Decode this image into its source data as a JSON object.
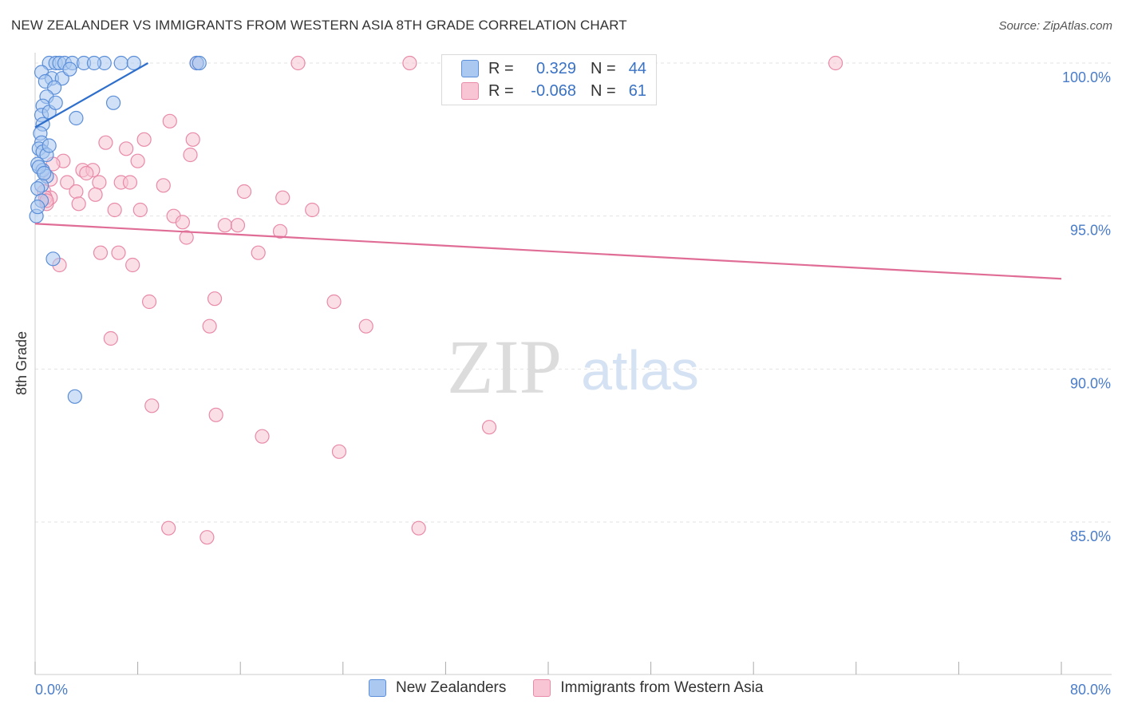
{
  "title": "NEW ZEALANDER VS IMMIGRANTS FROM WESTERN ASIA 8TH GRADE CORRELATION CHART",
  "source": "Source: ZipAtlas.com",
  "watermark": {
    "zip": "ZIP",
    "atlas": "atlas"
  },
  "legend": {
    "rows": [
      {
        "r_label": "R =",
        "r_value": "0.329",
        "n_label": "N =",
        "n_value": "44"
      },
      {
        "r_label": "R =",
        "r_value": "-0.068",
        "n_label": "N =",
        "n_value": "61"
      }
    ]
  },
  "bottom_legend": [
    "New Zealanders",
    "Immigrants from Western Asia"
  ],
  "colors": {
    "blue_fill": "#aac8f0",
    "blue_stroke": "#5b8ed8",
    "blue_line": "#2f6fcc",
    "pink_fill": "#f7c5d3",
    "pink_stroke": "#e88aa8",
    "pink_line": "#e06d96",
    "axis_text": "#4a7cc7",
    "grid": "#e3e3e3"
  },
  "chart_data": {
    "type": "scatter",
    "title": "NEW ZEALANDER VS IMMIGRANTS FROM WESTERN ASIA 8TH GRADE CORRELATION CHART",
    "xlabel": "",
    "ylabel": "8th Grade",
    "xlim": [
      0,
      80
    ],
    "ylim": [
      80.5,
      100.5
    ],
    "x_tick_labels": [
      "0.0%",
      "80.0%"
    ],
    "y_ticks": [
      85,
      90,
      95,
      100
    ],
    "y_tick_labels": [
      "85.0%",
      "90.0%",
      "95.0%",
      "100.0%"
    ],
    "series": [
      {
        "name": "New Zealanders",
        "R": 0.329,
        "N": 44,
        "trend": {
          "x": [
            0.0,
            8.8
          ],
          "y": [
            97.9,
            100.0
          ]
        },
        "points": [
          [
            1.1,
            100.0
          ],
          [
            1.6,
            100.0
          ],
          [
            1.9,
            100.0
          ],
          [
            2.3,
            100.0
          ],
          [
            2.9,
            100.0
          ],
          [
            3.8,
            100.0
          ],
          [
            5.4,
            100.0
          ],
          [
            6.7,
            100.0
          ],
          [
            7.7,
            100.0
          ],
          [
            12.6,
            100.0
          ],
          [
            0.5,
            99.7
          ],
          [
            1.3,
            99.5
          ],
          [
            2.1,
            99.5
          ],
          [
            0.8,
            99.4
          ],
          [
            1.5,
            99.2
          ],
          [
            0.9,
            98.9
          ],
          [
            6.1,
            98.7
          ],
          [
            0.6,
            98.6
          ],
          [
            0.5,
            98.3
          ],
          [
            1.1,
            98.4
          ],
          [
            3.2,
            98.2
          ],
          [
            0.6,
            98.0
          ],
          [
            0.4,
            97.7
          ],
          [
            0.5,
            97.4
          ],
          [
            0.3,
            97.2
          ],
          [
            0.6,
            97.1
          ],
          [
            0.9,
            97.0
          ],
          [
            0.2,
            96.7
          ],
          [
            0.6,
            96.5
          ],
          [
            0.9,
            96.3
          ],
          [
            0.5,
            96.0
          ],
          [
            0.2,
            95.9
          ],
          [
            0.5,
            95.5
          ],
          [
            0.1,
            95.0
          ],
          [
            1.4,
            93.6
          ],
          [
            3.1,
            89.1
          ],
          [
            1.6,
            98.7
          ],
          [
            2.7,
            99.8
          ],
          [
            1.1,
            97.3
          ],
          [
            0.3,
            96.6
          ],
          [
            0.7,
            96.4
          ],
          [
            0.2,
            95.3
          ],
          [
            4.6,
            100.0
          ],
          [
            12.8,
            100.0
          ]
        ]
      },
      {
        "name": "Immigrants from Western Asia",
        "R": -0.068,
        "N": 61,
        "trend": {
          "x": [
            0.0,
            80.0
          ],
          "y": [
            94.75,
            92.95
          ]
        },
        "points": [
          [
            12.6,
            100.0
          ],
          [
            20.5,
            100.0
          ],
          [
            29.2,
            100.0
          ],
          [
            43.4,
            100.0
          ],
          [
            62.4,
            100.0
          ],
          [
            10.5,
            98.1
          ],
          [
            12.3,
            97.5
          ],
          [
            5.5,
            97.4
          ],
          [
            8.5,
            97.5
          ],
          [
            7.1,
            97.2
          ],
          [
            12.1,
            97.0
          ],
          [
            2.2,
            96.8
          ],
          [
            8.0,
            96.8
          ],
          [
            3.7,
            96.5
          ],
          [
            4.5,
            96.5
          ],
          [
            1.4,
            96.7
          ],
          [
            4.0,
            96.4
          ],
          [
            1.2,
            96.2
          ],
          [
            2.5,
            96.1
          ],
          [
            5.0,
            96.1
          ],
          [
            6.7,
            96.1
          ],
          [
            7.4,
            96.1
          ],
          [
            10.0,
            96.0
          ],
          [
            3.2,
            95.8
          ],
          [
            4.7,
            95.7
          ],
          [
            16.3,
            95.8
          ],
          [
            19.3,
            95.6
          ],
          [
            0.7,
            95.8
          ],
          [
            1.2,
            95.6
          ],
          [
            0.9,
            95.4
          ],
          [
            3.4,
            95.4
          ],
          [
            6.2,
            95.2
          ],
          [
            8.2,
            95.2
          ],
          [
            21.6,
            95.2
          ],
          [
            10.8,
            95.0
          ],
          [
            11.5,
            94.8
          ],
          [
            14.8,
            94.7
          ],
          [
            15.8,
            94.7
          ],
          [
            11.8,
            94.3
          ],
          [
            19.1,
            94.5
          ],
          [
            5.1,
            93.8
          ],
          [
            6.5,
            93.8
          ],
          [
            17.4,
            93.8
          ],
          [
            1.9,
            93.4
          ],
          [
            7.6,
            93.4
          ],
          [
            8.9,
            92.2
          ],
          [
            14.0,
            92.3
          ],
          [
            23.3,
            92.2
          ],
          [
            13.6,
            91.4
          ],
          [
            25.8,
            91.4
          ],
          [
            5.9,
            91.0
          ],
          [
            9.1,
            88.8
          ],
          [
            14.1,
            88.5
          ],
          [
            17.7,
            87.8
          ],
          [
            23.7,
            87.3
          ],
          [
            35.4,
            88.1
          ],
          [
            10.4,
            84.8
          ],
          [
            13.4,
            84.5
          ],
          [
            29.9,
            84.8
          ],
          [
            0.8,
            95.6
          ],
          [
            0.9,
            95.5
          ]
        ]
      }
    ]
  }
}
